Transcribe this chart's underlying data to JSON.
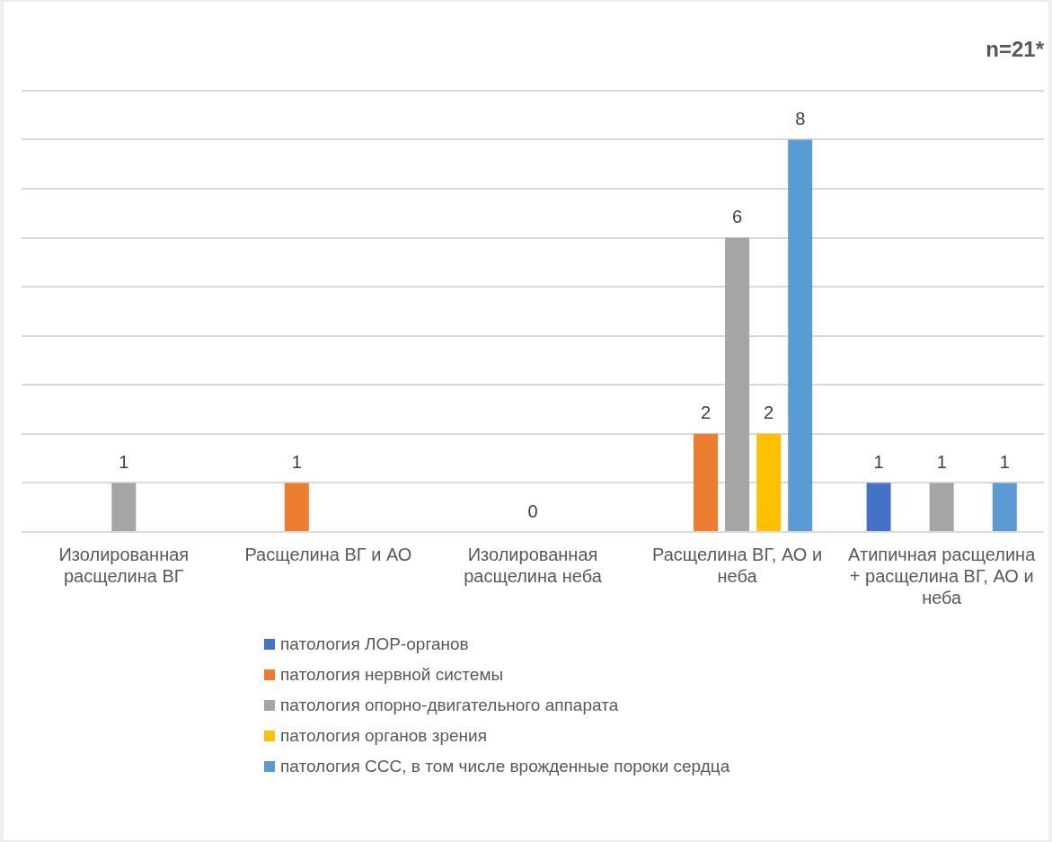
{
  "chart_data": {
    "type": "bar",
    "title": "n=21*",
    "categories": [
      "Изолированная расщелина ВГ",
      "Расщелина ВГ и АО",
      "Изолированная расщелина неба",
      "Расщелина ВГ, АО и неба",
      "Атипичная расщелина + расщелина ВГ, АО и неба"
    ],
    "series": [
      {
        "name": "патология ЛОР-органов",
        "color": "#4472c4",
        "values": [
          null,
          null,
          null,
          null,
          1
        ],
        "value_labels": [
          null,
          null,
          null,
          null,
          "1"
        ]
      },
      {
        "name": "патология нервной системы",
        "color": "#ed7d31",
        "values": [
          null,
          1,
          null,
          2,
          null
        ],
        "value_labels": [
          null,
          "1",
          null,
          "2",
          null
        ]
      },
      {
        "name": "патология опорно-двигательного аппарата",
        "color": "#a5a5a5",
        "values": [
          1,
          null,
          0,
          6,
          1
        ],
        "value_labels": [
          "1",
          null,
          "0",
          "6",
          "1"
        ]
      },
      {
        "name": "патология органов зрения",
        "color": "#ffc000",
        "values": [
          null,
          null,
          null,
          2,
          null
        ],
        "value_labels": [
          null,
          null,
          null,
          "2",
          null
        ]
      },
      {
        "name": "патология ССС, в том числе врожденные пороки сердца",
        "color": "#5b9bd5",
        "values": [
          null,
          null,
          null,
          8,
          1
        ],
        "value_labels": [
          null,
          null,
          null,
          "8",
          "1"
        ]
      }
    ],
    "ylim": [
      0,
      9
    ],
    "yticks": [
      0,
      1,
      2,
      3,
      4,
      5,
      6,
      7,
      8,
      9
    ],
    "grid": "y",
    "tick_labels": "x",
    "legend": "bottom"
  }
}
